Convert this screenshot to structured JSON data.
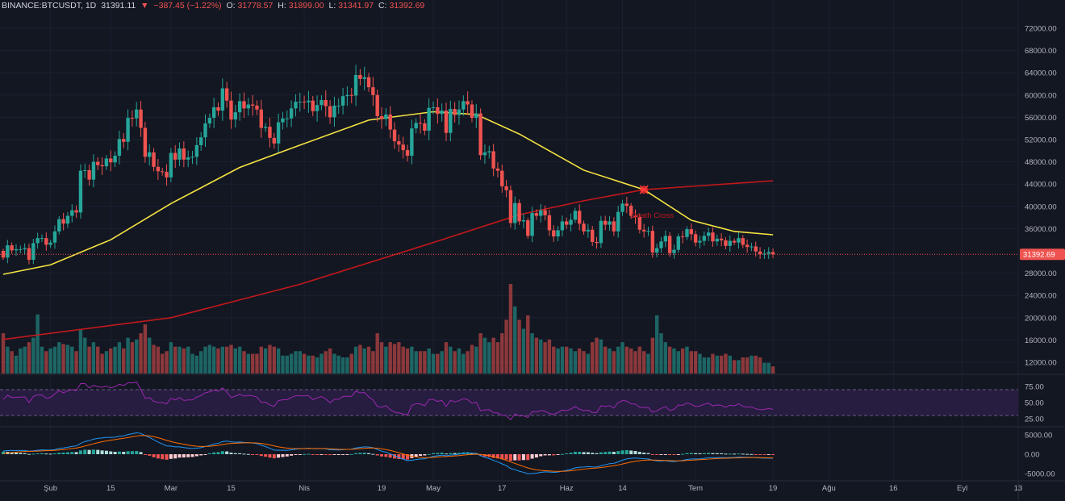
{
  "header": {
    "symbol": "BINANCE:BTCUSDT, 1D",
    "last": "31391.11",
    "change": "−387.45 (−1.22%)",
    "o_label": "O:",
    "o": "31778.57",
    "h_label": "H:",
    "h": "31899.00",
    "l_label": "L:",
    "l": "31341.97",
    "c_label": "C:",
    "c": "31392.69"
  },
  "colors": {
    "bg": "#131722",
    "up": "#26a69a",
    "down": "#ef5350",
    "ma50": "#f5e342",
    "ma200": "#c2181b",
    "rsi": "#9c27b0",
    "macd": "#2196f3",
    "signal": "#ff6d00"
  },
  "annotation": {
    "label": "Death Cross"
  },
  "chart_data": {
    "type": "candlestick",
    "title": "BINANCE:BTCUSDT, 1D",
    "price_axis": {
      "ticks": [
        "72000.00",
        "68000.00",
        "64000.00",
        "60000.00",
        "56000.00",
        "52000.00",
        "48000.00",
        "44000.00",
        "40000.00",
        "36000.00",
        "28000.00",
        "24000.00",
        "20000.00",
        "16000.00",
        "12000.00"
      ],
      "tick_values": [
        72000,
        68000,
        64000,
        60000,
        56000,
        52000,
        48000,
        44000,
        40000,
        36000,
        28000,
        24000,
        20000,
        16000,
        12000
      ],
      "last_price_label": "31392.69",
      "last_price": 31392.69
    },
    "rsi_axis": {
      "ticks": [
        "75.00",
        "50.00",
        "25.00"
      ],
      "tick_values": [
        75,
        50,
        25
      ],
      "bands": [
        70,
        30
      ]
    },
    "macd_axis": {
      "ticks": [
        "5000.00",
        "0.00",
        "-5000.00"
      ],
      "tick_values": [
        5000,
        0,
        -5000
      ]
    },
    "time_axis": {
      "labels": [
        "Şub",
        "15",
        "Mar",
        "15",
        "Nis",
        "19",
        "May",
        "17",
        "Haz",
        "14",
        "Tem",
        "19",
        "Ağu",
        "16",
        "Eyl",
        "13"
      ],
      "day_index": [
        11,
        25,
        39,
        53,
        70,
        88,
        100,
        116,
        131,
        144,
        161,
        179,
        192,
        207,
        223,
        236
      ]
    },
    "first_open_k": 32.0,
    "closes_k": [
      30.8,
      33.0,
      32.1,
      32.3,
      32.3,
      32.5,
      30.4,
      33.4,
      34.3,
      34.3,
      33.1,
      33.5,
      35.5,
      37.7,
      36.9,
      38.3,
      39.3,
      38.9,
      46.4,
      46.5,
      44.8,
      48.0,
      47.4,
      47.2,
      48.6,
      47.9,
      49.1,
      52.1,
      51.6,
      55.9,
      55.8,
      57.4,
      54.1,
      48.9,
      49.7,
      47.1,
      46.3,
      46.2,
      45.2,
      49.6,
      48.4,
      50.4,
      48.4,
      48.8,
      48.9,
      51.0,
      52.4,
      54.9,
      55.9,
      57.8,
      57.2,
      61.2,
      59.0,
      55.6,
      56.9,
      58.9,
      57.6,
      58.3,
      58.1,
      57.4,
      54.1,
      54.3,
      52.3,
      51.3,
      55.1,
      55.8,
      55.8,
      57.6,
      58.8,
      58.8,
      58.7,
      59.0,
      57.1,
      58.2,
      59.1,
      58.0,
      56.0,
      58.1,
      58.1,
      59.8,
      60.0,
      59.9,
      63.6,
      62.9,
      63.2,
      61.4,
      60.0,
      56.2,
      55.7,
      56.5,
      53.8,
      51.7,
      51.1,
      50.1,
      49.1,
      54.0,
      55.0,
      54.9,
      53.6,
      57.7,
      57.8,
      56.6,
      57.2,
      53.2,
      57.5,
      56.4,
      57.4,
      58.9,
      58.3,
      55.9,
      56.7,
      49.2,
      49.7,
      49.9,
      46.8,
      46.4,
      43.6,
      42.9,
      37.0,
      40.6,
      37.3,
      37.5,
      34.7,
      38.8,
      38.3,
      39.3,
      38.4,
      35.7,
      34.6,
      35.7,
      37.3,
      36.7,
      37.6,
      39.2,
      36.9,
      35.5,
      35.8,
      33.6,
      33.4,
      37.4,
      36.7,
      37.3,
      35.5,
      39.0,
      40.5,
      40.1,
      38.3,
      38.1,
      35.8,
      35.5,
      35.6,
      31.7,
      32.5,
      33.7,
      34.7,
      31.6,
      32.2,
      34.6,
      34.5,
      35.9,
      35.0,
      33.5,
      33.8,
      34.7,
      35.3,
      33.7,
      34.2,
      33.9,
      32.9,
      33.8,
      33.5,
      34.3,
      33.1,
      32.7,
      32.8,
      31.9,
      31.4,
      31.5,
      31.8,
      31.39
    ],
    "volume_rel": [
      45,
      30,
      25,
      20,
      28,
      30,
      35,
      40,
      66,
      30,
      25,
      28,
      30,
      35,
      33,
      32,
      30,
      25,
      50,
      40,
      30,
      35,
      30,
      22,
      25,
      28,
      30,
      35,
      28,
      40,
      35,
      38,
      45,
      55,
      40,
      32,
      30,
      22,
      25,
      35,
      30,
      30,
      28,
      30,
      22,
      20,
      25,
      30,
      32,
      30,
      28,
      30,
      30,
      32,
      28,
      30,
      25,
      22,
      22,
      22,
      30,
      28,
      32,
      30,
      28,
      20,
      20,
      22,
      25,
      25,
      22,
      20,
      20,
      18,
      22,
      25,
      28,
      22,
      20,
      18,
      18,
      22,
      30,
      32,
      28,
      30,
      25,
      45,
      35,
      30,
      35,
      33,
      35,
      30,
      28,
      30,
      25,
      25,
      25,
      28,
      22,
      22,
      25,
      35,
      30,
      25,
      28,
      22,
      25,
      32,
      30,
      45,
      40,
      35,
      40,
      35,
      45,
      60,
      100,
      75,
      60,
      50,
      65,
      45,
      40,
      38,
      35,
      38,
      30,
      28,
      30,
      30,
      28,
      25,
      28,
      25,
      22,
      35,
      40,
      38,
      30,
      28,
      25,
      30,
      35,
      30,
      28,
      25,
      30,
      25,
      22,
      40,
      65,
      45,
      35,
      30,
      28,
      25,
      28,
      30,
      25,
      25,
      22,
      18,
      18,
      22,
      20,
      20,
      22,
      20,
      15,
      15,
      18,
      18,
      20,
      20,
      18,
      12,
      12,
      8
    ],
    "ma50_k": [
      [
        0,
        27.8
      ],
      [
        11,
        29.5
      ],
      [
        25,
        34
      ],
      [
        39,
        40.5
      ],
      [
        55,
        47
      ],
      [
        69,
        51
      ],
      [
        85,
        55.5
      ],
      [
        100,
        57
      ],
      [
        110,
        56.5
      ],
      [
        120,
        53
      ],
      [
        135,
        46.5
      ],
      [
        149,
        43
      ],
      [
        160,
        37.5
      ],
      [
        170,
        35.5
      ],
      [
        179,
        34.9
      ]
    ],
    "ma200_k": [
      [
        0,
        16.1
      ],
      [
        39,
        20
      ],
      [
        69,
        26
      ],
      [
        100,
        33.5
      ],
      [
        120,
        38.5
      ],
      [
        135,
        41
      ],
      [
        149,
        43
      ],
      [
        179,
        44.6
      ]
    ],
    "death_cross": {
      "day_index": 149,
      "price_k": 43
    }
  }
}
